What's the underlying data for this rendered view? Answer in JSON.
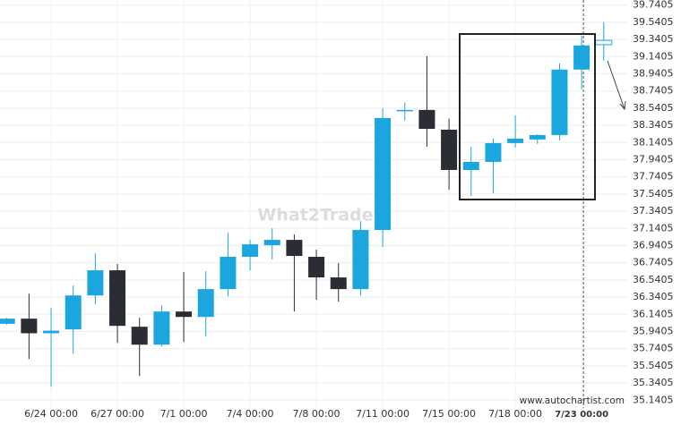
{
  "chart_data": {
    "type": "candlestick",
    "categories": [
      null,
      null,
      "6/24 00:00",
      null,
      null,
      "6/27 00:00",
      null,
      null,
      "7/1 00:00",
      null,
      null,
      "7/4 00:00",
      null,
      null,
      "7/8 00:00",
      null,
      null,
      "7/11 00:00",
      null,
      null,
      "7/15 00:00",
      null,
      null,
      "7/18 00:00",
      null,
      null,
      "7/23 00:00",
      null
    ],
    "open": [
      36.03,
      36.09,
      35.92,
      35.965,
      36.36,
      36.653,
      35.996,
      35.787,
      36.173,
      36.11,
      36.434,
      36.81,
      36.945,
      37.007,
      36.81,
      36.57,
      36.434,
      37.122,
      38.51,
      38.52,
      38.29,
      37.821,
      37.915,
      38.134,
      38.176,
      38.228,
      38.99,
      39.28
    ],
    "high": [
      36.1,
      36.38,
      36.215,
      36.476,
      36.85,
      36.726,
      36.1,
      36.246,
      36.632,
      36.643,
      37.09,
      37.01,
      37.143,
      37.07,
      36.893,
      36.736,
      37.226,
      38.541,
      38.604,
      39.146,
      38.416,
      38.092,
      38.186,
      38.457,
      38.238,
      39.063,
      39.386,
      39.542
    ],
    "low": [
      36.02,
      35.62,
      35.297,
      35.683,
      36.257,
      35.808,
      35.422,
      35.766,
      35.818,
      35.881,
      36.35,
      36.653,
      36.78,
      36.173,
      36.31,
      36.288,
      36.36,
      36.924,
      38.395,
      38.092,
      37.592,
      37.519,
      37.55,
      38.082,
      38.124,
      38.165,
      38.76,
      39.094
    ],
    "close": [
      36.09,
      35.92,
      35.95,
      36.36,
      36.653,
      36.006,
      35.787,
      36.173,
      36.11,
      36.434,
      36.81,
      36.955,
      37.007,
      36.82,
      36.57,
      36.434,
      37.122,
      38.426,
      38.52,
      38.3,
      37.821,
      37.915,
      38.134,
      38.186,
      38.228,
      38.99,
      39.271,
      39.33
    ],
    "up_color": "#1ba6e0",
    "down_color": "#2b2d35",
    "ylim": [
      35.06,
      39.8
    ],
    "yticks": [
      35.1405,
      35.3405,
      35.5405,
      35.7405,
      35.9405,
      36.1405,
      36.3405,
      36.5405,
      36.7405,
      36.9405,
      37.1405,
      37.3405,
      37.5405,
      37.7405,
      37.9405,
      38.1405,
      38.3405,
      38.5405,
      38.7405,
      38.9405,
      39.1405,
      39.3405,
      39.5405,
      39.7405
    ],
    "grid": true,
    "watermark": "What2Trade",
    "source": "www.autochartist.com"
  }
}
